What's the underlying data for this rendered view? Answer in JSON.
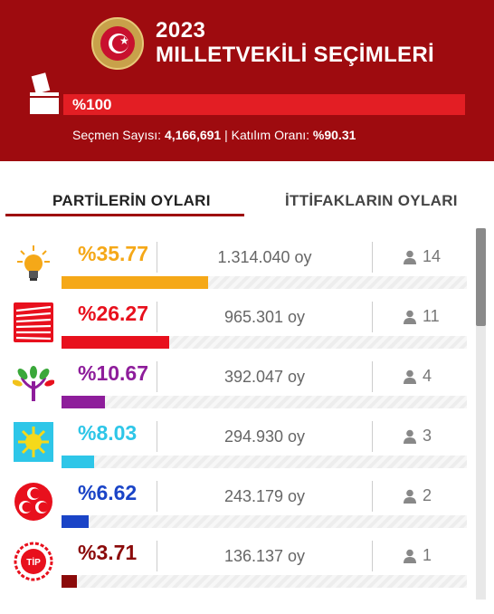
{
  "header": {
    "year": "2023",
    "title": "MILLETVEKİLİ SEÇİMLERİ",
    "progress_text": "%100",
    "progress_fraction": 1.0,
    "voters_label": "Seçmen Sayısı:",
    "voters_value": "4,166,691",
    "separator": "|",
    "turnout_label": "Katılım Oranı:",
    "turnout_value": "%90.31",
    "colors": {
      "background": "#9e0b0f",
      "bar": "#e31e24"
    }
  },
  "tabs": [
    {
      "label": "PARTİLERİN OYLARI",
      "active": true
    },
    {
      "label": "İTTİFAKLARIN OYLARI",
      "active": false
    }
  ],
  "parties": [
    {
      "logo": "akp-bulb-icon",
      "percent": "%35.77",
      "fraction": 0.3577,
      "votes": "1.314.040 oy",
      "seats": "14",
      "color": "#f5a818"
    },
    {
      "logo": "chp-six-arrows-icon",
      "percent": "%26.27",
      "fraction": 0.2627,
      "votes": "965.301 oy",
      "seats": "11",
      "color": "#e8101d"
    },
    {
      "logo": "yesil-sol-tree-icon",
      "percent": "%10.67",
      "fraction": 0.1067,
      "votes": "392.047 oy",
      "seats": "4",
      "color": "#8e1d9b"
    },
    {
      "logo": "iyi-sun-icon",
      "percent": "%8.03",
      "fraction": 0.0803,
      "votes": "294.930 oy",
      "seats": "3",
      "color": "#2ec6e8"
    },
    {
      "logo": "mhp-three-crescents-icon",
      "percent": "%6.62",
      "fraction": 0.0662,
      "votes": "243.179 oy",
      "seats": "2",
      "color": "#1a44c7"
    },
    {
      "logo": "tip-star-icon",
      "percent": "%3.71",
      "fraction": 0.0371,
      "votes": "136.137 oy",
      "seats": "1",
      "color": "#8b0a0a",
      "logo_text": "TİP"
    }
  ]
}
